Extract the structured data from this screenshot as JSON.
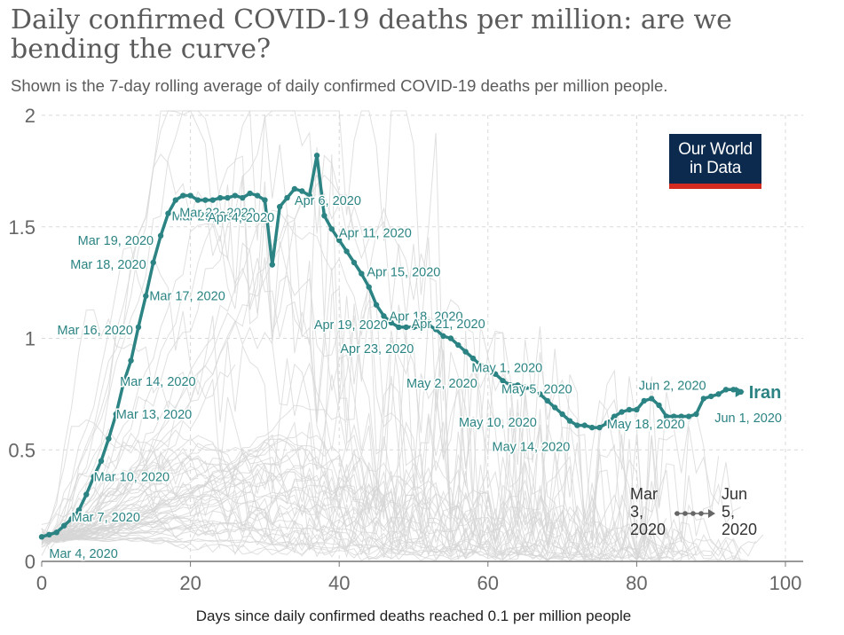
{
  "title": "Daily confirmed COVID-19 deaths per million: are we bending the curve?",
  "subtitle": "Shown is the 7-day rolling average of daily confirmed COVID-19 deaths per million people.",
  "logo": {
    "line1": "Our World",
    "line2": "in Data"
  },
  "colors": {
    "series": "#2b8383",
    "background_lines": "#d6d6d6",
    "grid": "#d9d9d9",
    "axis": "#777777",
    "logo_bg": "#0b2a4d",
    "logo_bar": "#d42b21"
  },
  "legend": {
    "start_label": "Mar 3, 2020",
    "start_lines": [
      "Mar",
      "3,",
      "2020"
    ],
    "end_label": "Jun 5, 2020",
    "end_lines": [
      "Jun",
      "5,",
      "2020"
    ]
  },
  "chart_data": {
    "type": "line",
    "title": "Daily confirmed COVID-19 deaths per million: are we bending the curve?",
    "xlabel": "Days since daily confirmed deaths reached 0.1 per million people",
    "ylabel": "",
    "xlim": [
      0,
      100
    ],
    "ylim": [
      0,
      2
    ],
    "xticks": [
      0,
      20,
      40,
      60,
      80,
      100
    ],
    "yticks": [
      0,
      0.5,
      1,
      1.5,
      2
    ],
    "ytick_labels": [
      "0",
      "0.5",
      "1",
      "1.5",
      "2"
    ],
    "grid": true,
    "series": [
      {
        "name": "Iran",
        "x": [
          0,
          1,
          2,
          3,
          4,
          5,
          6,
          7,
          8,
          9,
          10,
          11,
          12,
          13,
          14,
          15,
          16,
          17,
          18,
          19,
          20,
          21,
          22,
          23,
          24,
          25,
          26,
          27,
          28,
          29,
          30,
          31,
          32,
          33,
          34,
          35,
          36,
          37,
          38,
          39,
          40,
          41,
          42,
          43,
          44,
          45,
          46,
          47,
          48,
          49,
          50,
          51,
          52,
          53,
          54,
          55,
          56,
          57,
          58,
          59,
          60,
          61,
          62,
          63,
          64,
          65,
          66,
          67,
          68,
          69,
          70,
          71,
          72,
          73,
          74,
          75,
          76,
          77,
          78,
          79,
          80,
          81,
          82,
          83,
          84,
          85,
          86,
          87,
          88,
          89,
          90,
          91,
          92,
          93,
          94
        ],
        "y": [
          0.11,
          0.12,
          0.13,
          0.16,
          0.19,
          0.23,
          0.3,
          0.38,
          0.45,
          0.55,
          0.66,
          0.8,
          0.9,
          1.05,
          1.19,
          1.34,
          1.46,
          1.56,
          1.62,
          1.64,
          1.64,
          1.62,
          1.62,
          1.62,
          1.63,
          1.63,
          1.64,
          1.63,
          1.65,
          1.64,
          1.62,
          1.33,
          1.59,
          1.63,
          1.67,
          1.66,
          1.64,
          1.82,
          1.55,
          1.49,
          1.44,
          1.39,
          1.34,
          1.29,
          1.23,
          1.15,
          1.1,
          1.07,
          1.05,
          1.05,
          1.05,
          1.05,
          1.06,
          1.04,
          1.01,
          1.0,
          0.97,
          0.94,
          0.91,
          0.88,
          0.87,
          0.84,
          0.81,
          0.79,
          0.79,
          0.78,
          0.77,
          0.75,
          0.72,
          0.69,
          0.66,
          0.63,
          0.61,
          0.61,
          0.6,
          0.6,
          0.62,
          0.65,
          0.67,
          0.68,
          0.68,
          0.72,
          0.73,
          0.7,
          0.65,
          0.65,
          0.65,
          0.65,
          0.66,
          0.73,
          0.74,
          0.75,
          0.77,
          0.77,
          0.76
        ]
      }
    ],
    "annotations": [
      {
        "text": "Mar 4, 2020",
        "x": 1
      },
      {
        "text": "Mar 7, 2020",
        "x": 4
      },
      {
        "text": "Mar 10, 2020",
        "x": 7
      },
      {
        "text": "Mar 13, 2020",
        "x": 10
      },
      {
        "text": "Mar 14, 2020",
        "x": 11
      },
      {
        "text": "Mar 16, 2020",
        "x": 13
      },
      {
        "text": "Mar 17, 2020",
        "x": 14
      },
      {
        "text": "Mar 18, 2020",
        "x": 15
      },
      {
        "text": "Mar 19, 2020",
        "x": 16
      },
      {
        "text": "Mar 20, 2020",
        "x": 17
      },
      {
        "text": "Mar 22, 2020",
        "x": 19
      },
      {
        "text": "Apr 4, 2020",
        "x": 32
      },
      {
        "text": "Apr 6, 2020",
        "x": 34
      },
      {
        "text": "Apr 11, 2020",
        "x": 39
      },
      {
        "text": "Apr 15, 2020",
        "x": 43
      },
      {
        "text": "Apr 18, 2020",
        "x": 46
      },
      {
        "text": "Apr 19, 2020",
        "x": 47
      },
      {
        "text": "Apr 21, 2020",
        "x": 49
      },
      {
        "text": "Apr 23, 2020",
        "x": 51
      },
      {
        "text": "May 1, 2020",
        "x": 59
      },
      {
        "text": "May 2, 2020",
        "x": 60
      },
      {
        "text": "May 5, 2020",
        "x": 63
      },
      {
        "text": "May 10, 2020",
        "x": 68
      },
      {
        "text": "May 14, 2020",
        "x": 72
      },
      {
        "text": "May 18, 2020",
        "x": 76
      },
      {
        "text": "Jun 1, 2020",
        "x": 90
      },
      {
        "text": "Jun 2, 2020",
        "x": 91
      }
    ],
    "series_label": "Iran"
  }
}
